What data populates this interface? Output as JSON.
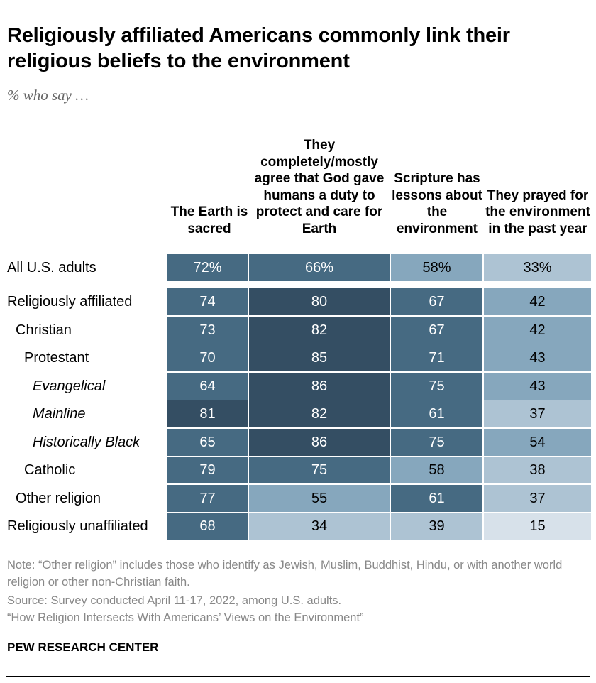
{
  "chart_data": {
    "type": "heatmap",
    "title": "Religiously affiliated Americans commonly link their religious beliefs to the environment",
    "subtitle": "% who say …",
    "columns": [
      "The Earth is sacred",
      "They completely/mostly agree that God gave humans a duty to protect and care for Earth",
      "Scripture has lessons about the environment",
      "They prayed for the environment in the past year"
    ],
    "rows": [
      {
        "label": "All U.S. adults",
        "indent": 0,
        "italic": false,
        "values": [
          72,
          66,
          58,
          33
        ],
        "display": [
          "72%",
          "66%",
          "58%",
          "33%"
        ]
      },
      {
        "label": "Religiously affiliated",
        "indent": 0,
        "italic": false,
        "values": [
          74,
          80,
          67,
          42
        ]
      },
      {
        "label": "Christian",
        "indent": 1,
        "italic": false,
        "values": [
          73,
          82,
          67,
          42
        ]
      },
      {
        "label": "Protestant",
        "indent": 2,
        "italic": false,
        "values": [
          70,
          85,
          71,
          43
        ]
      },
      {
        "label": "Evangelical",
        "indent": 3,
        "italic": true,
        "values": [
          64,
          86,
          75,
          43
        ]
      },
      {
        "label": "Mainline",
        "indent": 3,
        "italic": true,
        "values": [
          81,
          82,
          61,
          37
        ]
      },
      {
        "label": "Historically Black",
        "indent": 3,
        "italic": true,
        "values": [
          65,
          86,
          75,
          54
        ]
      },
      {
        "label": "Catholic",
        "indent": 2,
        "italic": false,
        "values": [
          79,
          75,
          58,
          38
        ]
      },
      {
        "label": "Other religion",
        "indent": 1,
        "italic": false,
        "values": [
          77,
          55,
          61,
          37
        ]
      },
      {
        "label": "Religiously unaffiliated",
        "indent": 0,
        "italic": false,
        "values": [
          68,
          34,
          39,
          15
        ]
      }
    ],
    "color_scale": [
      {
        "min": 80,
        "color": "#344e63",
        "text": "#ffffff"
      },
      {
        "min": 60,
        "color": "#466a82",
        "text": "#ffffff"
      },
      {
        "min": 40,
        "color": "#86a7bd",
        "text": "#000000"
      },
      {
        "min": 20,
        "color": "#adc3d3",
        "text": "#000000"
      },
      {
        "min": 0,
        "color": "#d7e1ea",
        "text": "#000000"
      }
    ]
  },
  "notes": {
    "note": "Note: “Other religion” includes those who identify as Jewish, Muslim, Buddhist, Hindu, or with another world religion or other non-Christian faith.",
    "source": "Source: Survey conducted April 11-17, 2022, among U.S. adults.",
    "report": "“How Religion Intersects With Americans’ Views on the Environment”"
  },
  "brand": "PEW RESEARCH CENTER"
}
